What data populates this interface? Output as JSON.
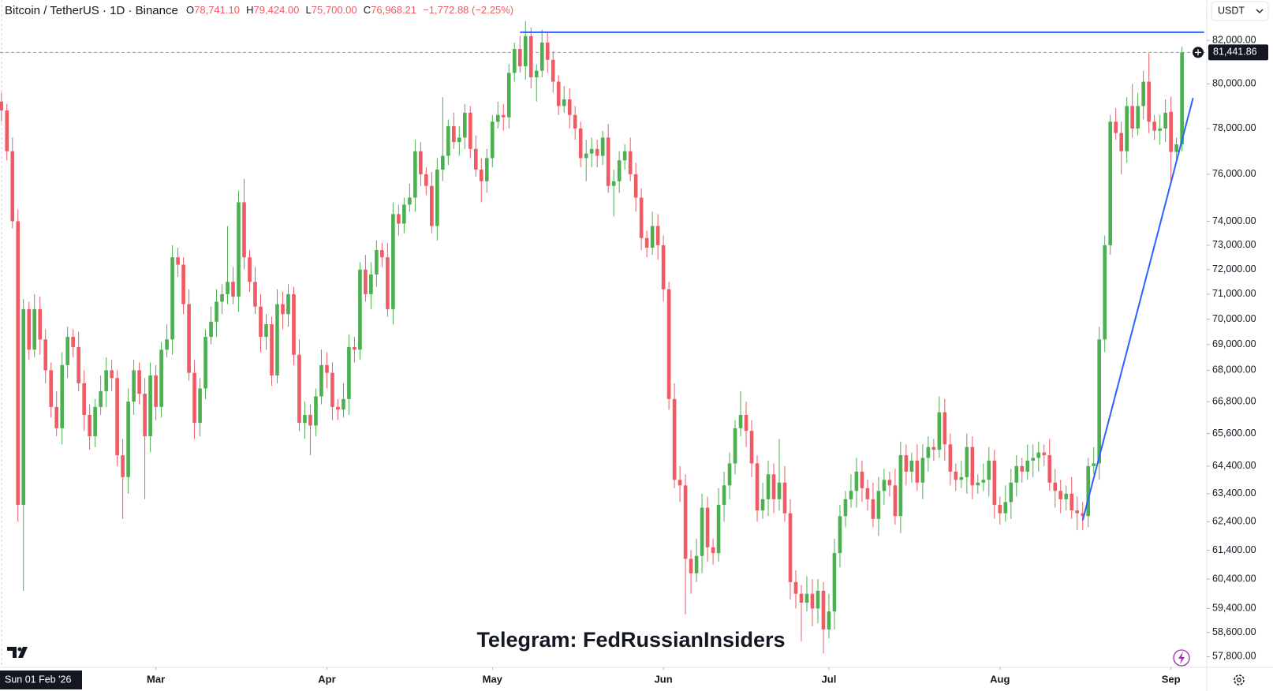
{
  "chart_data": {
    "type": "candlestick",
    "title": "Bitcoin / TetherUS · 1D · Binance",
    "ohlc_legend": [
      {
        "key": "O",
        "value": "78,741.10"
      },
      {
        "key": "H",
        "value": "79,424.00"
      },
      {
        "key": "L",
        "value": "75,700.00"
      },
      {
        "key": "C",
        "value": "76,968.21"
      }
    ],
    "change": "−1,772.88 (−2.25%)",
    "currency": "USDT",
    "watermark": "Telegram: FedRussianInsiders",
    "x_cursor_label": "Sun 01 Feb '26",
    "log_scale": true,
    "grid": false,
    "up_color": "#4caf50",
    "down_color": "#ef5a64",
    "drawing_color": "#2962ff",
    "xlim": [
      -0.25,
      218.2
    ],
    "xticks": [
      {
        "value": 28,
        "label": "Mar"
      },
      {
        "value": 59,
        "label": "Apr"
      },
      {
        "value": 89,
        "label": "May"
      },
      {
        "value": 120,
        "label": "Jun"
      },
      {
        "value": 150,
        "label": "Jul"
      },
      {
        "value": 181,
        "label": "Aug"
      },
      {
        "value": 212,
        "label": "Sep"
      }
    ],
    "ylim": [
      57450,
      83900
    ],
    "yticks": [
      {
        "value": 82000,
        "label": "82,000.00"
      },
      {
        "value": 80000,
        "label": "80,000.00"
      },
      {
        "value": 78000,
        "label": "78,000.00"
      },
      {
        "value": 76000,
        "label": "76,000.00"
      },
      {
        "value": 74000,
        "label": "74,000.00"
      },
      {
        "value": 73000,
        "label": "73,000.00"
      },
      {
        "value": 72000,
        "label": "72,000.00"
      },
      {
        "value": 71000,
        "label": "71,000.00"
      },
      {
        "value": 70000,
        "label": "70,000.00"
      },
      {
        "value": 69000,
        "label": "69,000.00"
      },
      {
        "value": 68000,
        "label": "68,000.00"
      },
      {
        "value": 66800,
        "label": "66,800.00"
      },
      {
        "value": 65600,
        "label": "65,600.00"
      },
      {
        "value": 64400,
        "label": "64,400.00"
      },
      {
        "value": 63400,
        "label": "63,400.00"
      },
      {
        "value": 62400,
        "label": "62,400.00"
      },
      {
        "value": 61400,
        "label": "61,400.00"
      },
      {
        "value": 60400,
        "label": "60,400.00"
      },
      {
        "value": 59400,
        "label": "59,400.00"
      },
      {
        "value": 58600,
        "label": "58,600.00"
      },
      {
        "value": 57800,
        "label": "57,800.00"
      }
    ],
    "last_price": {
      "value": 81441.86,
      "label": "81,441.86"
    },
    "drawings": [
      {
        "x": [
          94,
          218
        ],
        "y": [
          82380,
          82380
        ]
      },
      {
        "x": [
          196,
          216
        ],
        "y": [
          62450,
          79360
        ]
      }
    ],
    "ohlc": [
      [
        79200,
        79600,
        78300,
        78800
      ],
      [
        78800,
        79100,
        76600,
        77000
      ],
      [
        77000,
        77600,
        73700,
        74000
      ],
      [
        74000,
        74500,
        62400,
        63000
      ],
      [
        63000,
        70800,
        60000,
        70400
      ],
      [
        70400,
        70700,
        68400,
        68800
      ],
      [
        68800,
        71000,
        68500,
        70400
      ],
      [
        70400,
        70900,
        68600,
        69200
      ],
      [
        69200,
        69600,
        67500,
        68000
      ],
      [
        68000,
        68300,
        66200,
        66600
      ],
      [
        66600,
        67200,
        65500,
        65800
      ],
      [
        65800,
        68700,
        65200,
        68200
      ],
      [
        68200,
        69700,
        67700,
        69300
      ],
      [
        69300,
        69600,
        68500,
        68900
      ],
      [
        68900,
        69500,
        67200,
        67500
      ],
      [
        67500,
        68000,
        65700,
        66300
      ],
      [
        66300,
        66700,
        65000,
        65500
      ],
      [
        65500,
        66900,
        65100,
        66600
      ],
      [
        66600,
        67800,
        66300,
        67200
      ],
      [
        67200,
        68500,
        66600,
        68000
      ],
      [
        68000,
        68400,
        67200,
        67700
      ],
      [
        67700,
        68000,
        64400,
        64800
      ],
      [
        64800,
        65400,
        62500,
        64000
      ],
      [
        64000,
        67300,
        63400,
        66800
      ],
      [
        66800,
        68400,
        66300,
        68000
      ],
      [
        68000,
        68300,
        66700,
        67100
      ],
      [
        67100,
        67700,
        63200,
        65500
      ],
      [
        65500,
        68300,
        64900,
        67800
      ],
      [
        67800,
        68200,
        66100,
        66600
      ],
      [
        66600,
        69100,
        66200,
        68800
      ],
      [
        68800,
        69800,
        68500,
        69200
      ],
      [
        69200,
        73000,
        68600,
        72500
      ],
      [
        72500,
        72900,
        71700,
        72200
      ],
      [
        72200,
        72500,
        70200,
        70600
      ],
      [
        70600,
        71200,
        67600,
        67900
      ],
      [
        67900,
        68400,
        65400,
        66000
      ],
      [
        66000,
        67700,
        65500,
        67300
      ],
      [
        67300,
        69600,
        66900,
        69300
      ],
      [
        69300,
        70500,
        69000,
        69900
      ],
      [
        69900,
        71200,
        69300,
        70700
      ],
      [
        70700,
        71400,
        70200,
        71000
      ],
      [
        71000,
        73800,
        70600,
        71500
      ],
      [
        71500,
        72100,
        70600,
        70900
      ],
      [
        70900,
        75300,
        70300,
        74800
      ],
      [
        74800,
        75800,
        72000,
        72500
      ],
      [
        72500,
        72800,
        71100,
        71500
      ],
      [
        71500,
        72100,
        70200,
        70500
      ],
      [
        70500,
        71000,
        68700,
        69300
      ],
      [
        69300,
        70200,
        68800,
        69800
      ],
      [
        69800,
        70100,
        67400,
        67800
      ],
      [
        67800,
        71200,
        67500,
        70600
      ],
      [
        70600,
        71100,
        69600,
        70200
      ],
      [
        70200,
        71400,
        69700,
        71000
      ],
      [
        71000,
        71300,
        68200,
        68600
      ],
      [
        68600,
        69200,
        65700,
        66000
      ],
      [
        66000,
        66800,
        65400,
        66300
      ],
      [
        66300,
        66700,
        64800,
        65900
      ],
      [
        65900,
        67300,
        65500,
        67000
      ],
      [
        67000,
        68800,
        66700,
        68200
      ],
      [
        68200,
        68700,
        67300,
        67900
      ],
      [
        67900,
        68300,
        66100,
        66600
      ],
      [
        66600,
        66900,
        66100,
        66500
      ],
      [
        66500,
        67500,
        66200,
        66900
      ],
      [
        66900,
        69400,
        66300,
        68900
      ],
      [
        68900,
        69300,
        68300,
        68800
      ],
      [
        68800,
        72300,
        68400,
        72000
      ],
      [
        72000,
        72600,
        70700,
        71000
      ],
      [
        71000,
        72300,
        70400,
        71800
      ],
      [
        71800,
        73200,
        71300,
        72800
      ],
      [
        72800,
        73100,
        72100,
        72500
      ],
      [
        72500,
        73100,
        70100,
        70400
      ],
      [
        70400,
        74800,
        69800,
        74300
      ],
      [
        74300,
        74700,
        73400,
        73900
      ],
      [
        73900,
        75000,
        73500,
        74700
      ],
      [
        74700,
        75600,
        74400,
        75000
      ],
      [
        75000,
        77500,
        74400,
        77000
      ],
      [
        77000,
        77400,
        75500,
        76000
      ],
      [
        76000,
        76300,
        75100,
        75500
      ],
      [
        75500,
        76100,
        73500,
        73800
      ],
      [
        73800,
        76700,
        73200,
        76200
      ],
      [
        76200,
        79400,
        75700,
        76800
      ],
      [
        76800,
        78400,
        76400,
        78100
      ],
      [
        78100,
        78700,
        77100,
        77400
      ],
      [
        77400,
        78100,
        76800,
        77600
      ],
      [
        77600,
        79100,
        77100,
        78700
      ],
      [
        78700,
        79000,
        76700,
        77100
      ],
      [
        77100,
        77700,
        75900,
        76200
      ],
      [
        76200,
        76700,
        74800,
        75700
      ],
      [
        75700,
        77100,
        75200,
        76700
      ],
      [
        76700,
        78600,
        76300,
        78300
      ],
      [
        78300,
        79200,
        78000,
        78600
      ],
      [
        78600,
        79100,
        77900,
        78500
      ],
      [
        78500,
        80900,
        78000,
        80500
      ],
      [
        80500,
        81900,
        80100,
        81600
      ],
      [
        81600,
        82200,
        80500,
        80800
      ],
      [
        80800,
        82900,
        80200,
        82200
      ],
      [
        82200,
        82600,
        79800,
        80300
      ],
      [
        80300,
        80900,
        79200,
        80600
      ],
      [
        80600,
        82500,
        80300,
        81900
      ],
      [
        81900,
        82400,
        80500,
        81100
      ],
      [
        81100,
        81500,
        79600,
        80100
      ],
      [
        80100,
        80400,
        78600,
        79000
      ],
      [
        79000,
        79900,
        78700,
        79300
      ],
      [
        79300,
        79800,
        78000,
        78600
      ],
      [
        78600,
        79000,
        77500,
        78000
      ],
      [
        78000,
        78300,
        76300,
        76700
      ],
      [
        76700,
        77500,
        75700,
        76900
      ],
      [
        76900,
        77600,
        76300,
        77100
      ],
      [
        77100,
        77500,
        76300,
        76800
      ],
      [
        76800,
        77900,
        76400,
        77600
      ],
      [
        77600,
        78200,
        75200,
        75500
      ],
      [
        75500,
        76200,
        74200,
        75700
      ],
      [
        75700,
        77000,
        75200,
        76600
      ],
      [
        76600,
        77300,
        76200,
        77000
      ],
      [
        77000,
        77600,
        75700,
        76000
      ],
      [
        76000,
        76500,
        74400,
        75000
      ],
      [
        75000,
        75400,
        72800,
        73300
      ],
      [
        73300,
        73600,
        72500,
        72900
      ],
      [
        72900,
        74400,
        72600,
        73800
      ],
      [
        73800,
        74300,
        72400,
        73000
      ],
      [
        73000,
        73400,
        70700,
        71200
      ],
      [
        71200,
        71500,
        66500,
        66900
      ],
      [
        66900,
        67500,
        63600,
        63900
      ],
      [
        63900,
        64400,
        63100,
        63700
      ],
      [
        63700,
        64100,
        59200,
        61100
      ],
      [
        61100,
        61400,
        59900,
        60600
      ],
      [
        60600,
        61800,
        60300,
        61200
      ],
      [
        61200,
        63400,
        60600,
        62900
      ],
      [
        62900,
        63300,
        61000,
        61500
      ],
      [
        61500,
        61800,
        60900,
        61300
      ],
      [
        61300,
        63600,
        61000,
        63000
      ],
      [
        63000,
        64200,
        62400,
        63700
      ],
      [
        63700,
        64900,
        63200,
        64500
      ],
      [
        64500,
        66100,
        64100,
        65800
      ],
      [
        65800,
        67200,
        65500,
        66300
      ],
      [
        66300,
        66800,
        65100,
        65700
      ],
      [
        65700,
        66100,
        64000,
        64500
      ],
      [
        64500,
        64800,
        62400,
        62800
      ],
      [
        62800,
        63800,
        62500,
        63200
      ],
      [
        63200,
        64600,
        62600,
        64100
      ],
      [
        64100,
        64500,
        62700,
        63200
      ],
      [
        63200,
        65400,
        62800,
        63800
      ],
      [
        63800,
        64400,
        62400,
        62700
      ],
      [
        62700,
        63200,
        59700,
        60300
      ],
      [
        60300,
        60700,
        59400,
        59900
      ],
      [
        59900,
        60200,
        58300,
        59600
      ],
      [
        59600,
        60500,
        59300,
        59900
      ],
      [
        59900,
        60400,
        58800,
        59400
      ],
      [
        59400,
        60400,
        58900,
        60000
      ],
      [
        60000,
        60300,
        57900,
        58700
      ],
      [
        58700,
        59900,
        58400,
        59300
      ],
      [
        59300,
        61800,
        58700,
        61300
      ],
      [
        61300,
        63000,
        60800,
        62600
      ],
      [
        62600,
        63500,
        62200,
        63200
      ],
      [
        63200,
        64100,
        62900,
        63500
      ],
      [
        63500,
        64700,
        62900,
        64200
      ],
      [
        64200,
        64600,
        63100,
        63600
      ],
      [
        63600,
        63900,
        62800,
        63200
      ],
      [
        63200,
        63800,
        62200,
        62500
      ],
      [
        62500,
        64000,
        61900,
        63500
      ],
      [
        63500,
        64300,
        63000,
        63900
      ],
      [
        63900,
        64200,
        63300,
        63700
      ],
      [
        63700,
        64300,
        62300,
        62600
      ],
      [
        62600,
        65300,
        62000,
        64800
      ],
      [
        64800,
        65200,
        63700,
        64200
      ],
      [
        64200,
        64900,
        63800,
        64600
      ],
      [
        64600,
        65200,
        63500,
        63800
      ],
      [
        63800,
        65200,
        63200,
        64700
      ],
      [
        64700,
        65500,
        64200,
        65100
      ],
      [
        65100,
        65400,
        64600,
        65000
      ],
      [
        65000,
        67000,
        64700,
        66400
      ],
      [
        66400,
        66900,
        64600,
        65200
      ],
      [
        65200,
        65600,
        63700,
        64200
      ],
      [
        64200,
        64500,
        63500,
        63900
      ],
      [
        63900,
        64600,
        63600,
        64000
      ],
      [
        64000,
        65600,
        63400,
        65100
      ],
      [
        65100,
        65500,
        63200,
        63700
      ],
      [
        63700,
        64100,
        63400,
        63800
      ],
      [
        63800,
        64500,
        63500,
        63900
      ],
      [
        63900,
        65100,
        63300,
        64600
      ],
      [
        64600,
        65000,
        62500,
        63000
      ],
      [
        63000,
        63300,
        62300,
        62700
      ],
      [
        62700,
        63700,
        62400,
        63100
      ],
      [
        63100,
        64300,
        62500,
        63800
      ],
      [
        63800,
        64800,
        63300,
        64400
      ],
      [
        64400,
        64700,
        63800,
        64200
      ],
      [
        64200,
        65200,
        63900,
        64600
      ],
      [
        64600,
        65200,
        64000,
        64700
      ],
      [
        64700,
        65300,
        64200,
        64900
      ],
      [
        64900,
        65200,
        64400,
        64800
      ],
      [
        64800,
        65400,
        63500,
        63800
      ],
      [
        63800,
        64300,
        62900,
        63500
      ],
      [
        63500,
        63900,
        62700,
        63200
      ],
      [
        63200,
        63700,
        62800,
        63400
      ],
      [
        63400,
        64000,
        62500,
        62800
      ],
      [
        62800,
        63300,
        62100,
        62700
      ],
      [
        62700,
        63100,
        62100,
        62600
      ],
      [
        62600,
        64700,
        62200,
        64400
      ],
      [
        64400,
        65100,
        64100,
        64500
      ],
      [
        64500,
        69700,
        63900,
        69200
      ],
      [
        69200,
        73400,
        68700,
        73000
      ],
      [
        73000,
        78600,
        72600,
        78300
      ],
      [
        78300,
        78900,
        77500,
        77800
      ],
      [
        77800,
        78300,
        76000,
        77000
      ],
      [
        77000,
        79400,
        76500,
        79000
      ],
      [
        79000,
        80000,
        77600,
        78000
      ],
      [
        78000,
        79600,
        77700,
        79000
      ],
      [
        79000,
        80600,
        78400,
        80100
      ],
      [
        80100,
        81400,
        77800,
        78300
      ],
      [
        78300,
        78600,
        77500,
        77900
      ],
      [
        77900,
        78600,
        77300,
        78000
      ],
      [
        78000,
        79300,
        77400,
        78700
      ],
      [
        78741.1,
        79424,
        75700,
        76968.21
      ],
      [
        76968.21,
        77600,
        76600,
        77300
      ],
      [
        77300,
        81700,
        77000,
        81441.86
      ]
    ]
  }
}
